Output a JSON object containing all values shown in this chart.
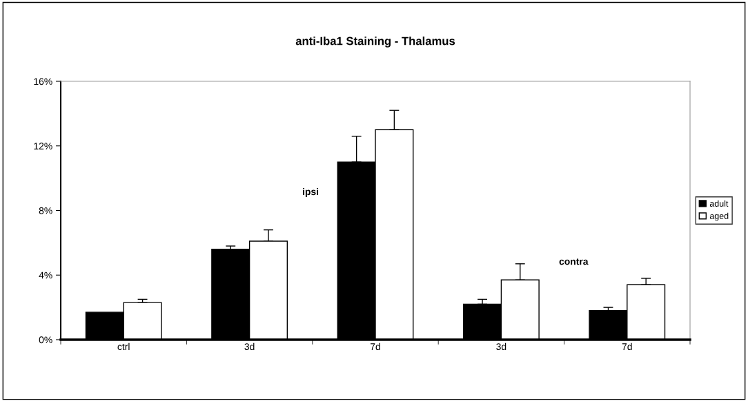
{
  "chart_data": {
    "type": "bar",
    "title": "anti-Iba1 Staining - Thalamus",
    "categories": [
      "ctrl",
      "3d",
      "7d",
      "3d",
      "7d"
    ],
    "series": [
      {
        "name": "adult",
        "color": "#000000",
        "values": [
          1.7,
          5.6,
          11.0,
          2.2,
          1.8
        ],
        "errors": [
          null,
          [
            5.6,
            5.8
          ],
          [
            11.0,
            12.6
          ],
          [
            2.2,
            2.5
          ],
          [
            1.8,
            2.0
          ]
        ]
      },
      {
        "name": "aged",
        "color": "#ffffff",
        "values": [
          2.3,
          6.1,
          13.0,
          3.7,
          3.4
        ],
        "errors": [
          [
            2.3,
            2.5
          ],
          [
            6.1,
            6.8
          ],
          [
            13.0,
            14.2
          ],
          [
            3.7,
            4.7
          ],
          [
            3.4,
            3.8
          ]
        ]
      }
    ],
    "ylim": [
      0,
      16
    ],
    "yticks": [
      {
        "value": 0,
        "label": "0%"
      },
      {
        "value": 4,
        "label": "4%"
      },
      {
        "value": 8,
        "label": "8%"
      },
      {
        "value": 12,
        "label": "12%"
      },
      {
        "value": 16,
        "label": "16%"
      }
    ],
    "annotations": [
      "ipsi",
      "contra"
    ],
    "legend": "right",
    "grid": false
  }
}
